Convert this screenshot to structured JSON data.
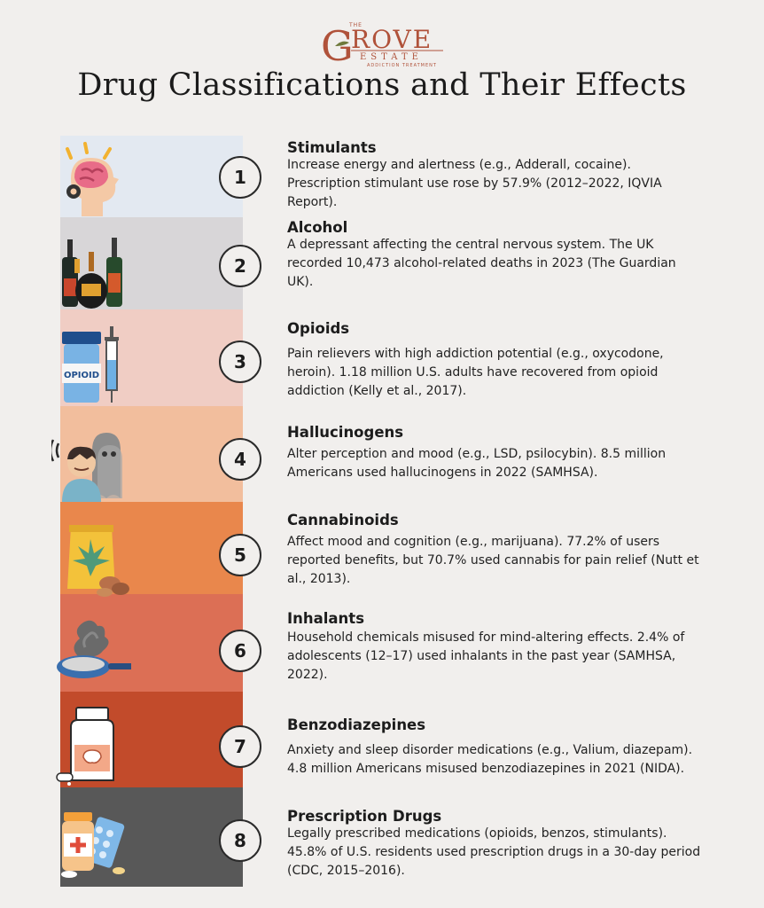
{
  "brand": {
    "initial": "G",
    "name": "ROVE",
    "the": "THE",
    "estate": "ESTATE",
    "tagline": "ADDICTION TREATMENT",
    "color": "#b0523a"
  },
  "title": "Drug Classifications and Their Effects",
  "items": [
    {
      "number": "1",
      "name": "Stimulants",
      "desc": "Increase energy and alertness (e.g., Adderall, cocaine). Prescription stimulant use rose by 57.9% (2012–2022, IQVIA Report).",
      "color": "#e3e9f1",
      "icon": "brain-head-icon"
    },
    {
      "number": "2",
      "name": "Alcohol",
      "desc": "A depressant affecting the central nervous system. The UK recorded 10,473 alcohol-related deaths in 2023 (The Guardian UK).",
      "color": "#d8d6d8",
      "icon": "bottles-icon"
    },
    {
      "number": "3",
      "name": "Opioids",
      "desc": "Pain relievers with high addiction potential (e.g., oxycodone, heroin). 1.18 million U.S. adults have recovered from opioid addiction (Kelly et al., 2017).",
      "color": "#f0cdc4",
      "icon": "opioid-bottle-syringe-icon",
      "label": "OPIOID"
    },
    {
      "number": "4",
      "name": "Hallucinogens",
      "desc": "Alter perception and mood (e.g., LSD, psilocybin). 8.5 million Americans used hallucinogens in 2022 (SAMHSA).",
      "color": "#f2be9d",
      "icon": "hallucinating-person-icon"
    },
    {
      "number": "5",
      "name": "Cannabinoids",
      "desc": "Affect mood and cognition (e.g., marijuana). 77.2% of users reported benefits, but 70.7% used cannabis for pain relief (Nutt et al., 2013).",
      "color": "#e9874c",
      "icon": "cannabis-bag-icon"
    },
    {
      "number": "6",
      "name": "Inhalants",
      "desc": "Household chemicals misused for mind-altering effects. 2.4% of adolescents (12–17) used inhalants in the past year (SAMHSA, 2022).",
      "color": "#dc6f55",
      "icon": "smoking-pan-icon"
    },
    {
      "number": "7",
      "name": "Benzodiazepines",
      "desc": "Anxiety and sleep disorder medications (e.g., Valium, diazepam). 4.8 million Americans misused benzodiazepines in 2021 (NIDA).",
      "color": "#c24b2b",
      "icon": "pill-bottle-icon"
    },
    {
      "number": "8",
      "name": "Prescription Drugs",
      "desc": "Legally prescribed medications (opioids, benzos, stimulants). 45.8% of U.S. residents used prescription drugs in a 30-day period (CDC, 2015–2016).",
      "color": "#585858",
      "icon": "prescription-pills-icon"
    }
  ]
}
